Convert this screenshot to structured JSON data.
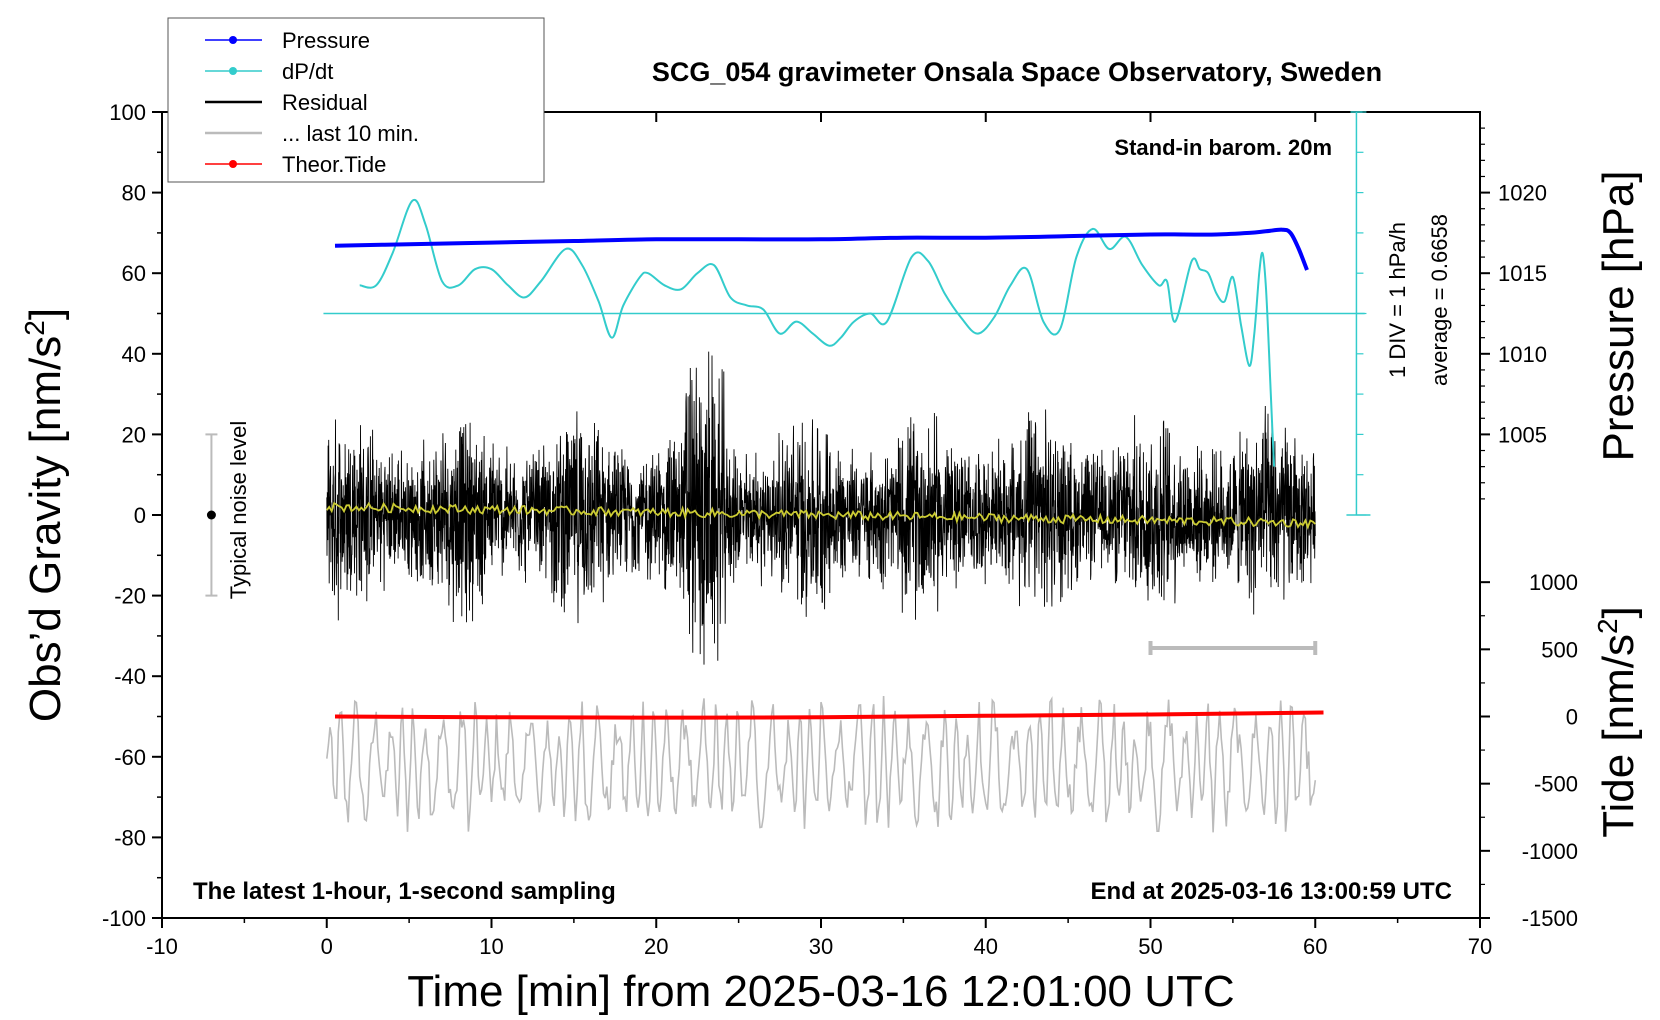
{
  "chart_data": {
    "type": "line",
    "title": "SCG_054 gravimeter Onsala Space Observatory, Sweden",
    "xlabel": "Time [min] from 2025-03-16 12:01:00 UTC",
    "ylabel_left": "Obs’d Gravity [nm/s",
    "ylabel_left_sup": "2",
    "ylabel_left_end": "]",
    "ylabel_right_top": "Pressure [hPa]",
    "ylabel_right_bottom": "Tide [nm/s",
    "ylabel_right_bottom_sup": "2",
    "ylabel_right_bottom_end": "]",
    "xlim": [
      -10,
      70
    ],
    "ylim": [
      -100,
      100
    ],
    "xticks": [
      -10,
      0,
      10,
      20,
      30,
      40,
      50,
      60,
      70
    ],
    "yticks": [
      -100,
      -80,
      -60,
      -40,
      -20,
      0,
      20,
      40,
      60,
      80,
      100
    ],
    "pressure_ticks": [
      1005,
      1010,
      1015,
      1020
    ],
    "pressure_axis_map": {
      "value_at_left_100": 1025,
      "value_at_left_0": 1000
    },
    "tide_ticks": [
      1000,
      500,
      0,
      -500,
      -1000,
      -1500
    ],
    "tide_axis_map": {
      "value_at_left_minus50": 0,
      "value_at_left_minus100": -1500
    },
    "annotations": {
      "stand_in": "Stand-in barom. 20m",
      "div": "1 DIV = 1 hPa/h",
      "average": "average = 0.6658",
      "noise": "Typical noise level",
      "latest": "The latest 1-hour, 1-second sampling",
      "end": "End at 2025-03-16 13:00:59 UTC"
    },
    "legend": {
      "placement": "top-left",
      "entries": [
        {
          "label": "Pressure",
          "color": "#0000ff",
          "marker": true
        },
        {
          "label": "dP/dt",
          "color": "#33cccc",
          "marker": true
        },
        {
          "label": "Residual",
          "color": "#000000",
          "marker": false
        },
        {
          "label": "... last 10 min.",
          "color": "#bbbbbb",
          "marker": false
        },
        {
          "label": "Theor.Tide",
          "color": "#ff0000",
          "marker": true
        }
      ]
    },
    "noise_bar": {
      "x": -7,
      "center": 0,
      "low": -20,
      "high": 20
    },
    "last10_bar": {
      "x_start": 50,
      "x_end": 60,
      "y": -33
    },
    "series": [
      {
        "name": "Pressure",
        "color": "#0000ff",
        "axis": "pressure",
        "x": [
          0.5,
          5,
          10,
          15,
          20,
          25,
          30,
          35,
          40,
          45,
          50,
          52,
          54,
          56,
          57,
          58,
          58.5,
          59,
          59.5
        ],
        "values": [
          1016.7,
          1016.8,
          1016.9,
          1017.0,
          1017.1,
          1017.1,
          1017.1,
          1017.2,
          1017.2,
          1017.3,
          1017.4,
          1017.4,
          1017.4,
          1017.5,
          1017.6,
          1017.7,
          1017.5,
          1016.5,
          1015.2
        ]
      },
      {
        "name": "dP/dt",
        "color": "#33cccc",
        "axis": "left",
        "baseline": 50,
        "x": [
          2,
          3,
          4,
          5.2,
          6,
          7,
          8,
          9,
          10,
          11,
          12,
          13,
          14.5,
          15.5,
          16.5,
          17.3,
          18,
          19,
          19.5,
          20.5,
          21.5,
          22.5,
          23.5,
          24.5,
          25.5,
          26.5,
          27.5,
          28.5,
          29.5,
          30.5,
          31.2,
          32,
          33,
          34,
          35.5,
          36.5,
          37.5,
          38.5,
          39.5,
          40.5,
          41.5,
          42.5,
          43.5,
          44.5,
          45.5,
          46.5,
          47.5,
          48.5,
          49.5,
          50.5,
          51,
          51.5,
          52.5,
          53,
          53.5,
          54,
          54.5,
          55,
          55.5,
          56,
          56.3,
          56.6,
          56.8,
          57,
          57.2,
          57.3,
          57.5
        ],
        "values": [
          57,
          57,
          65,
          78,
          72,
          58,
          57,
          61,
          61,
          57,
          54,
          58,
          66,
          62,
          53,
          44,
          52,
          59,
          60,
          57,
          56,
          60,
          62,
          54,
          52,
          51,
          45,
          48,
          45,
          42,
          44,
          48,
          50,
          48,
          64,
          63,
          55,
          49,
          45,
          49,
          57,
          61,
          48,
          46,
          64,
          71,
          66,
          69,
          62,
          57,
          58,
          48,
          63,
          61,
          60,
          55,
          53,
          59,
          47,
          37,
          45,
          60,
          65,
          57,
          40,
          30,
          12
        ]
      },
      {
        "name": "Theor.Tide",
        "color": "#ff0000",
        "axis": "tide",
        "x": [
          0.5,
          10,
          20,
          30,
          40,
          50,
          60.5
        ],
        "values": [
          0,
          -5,
          -8,
          -6,
          5,
          15,
          30
        ]
      },
      {
        "name": "Residual",
        "color": "#000000",
        "axis": "left",
        "x_range": [
          0,
          60
        ],
        "amplitude": 15
      },
      {
        "name": "Residual trend",
        "color": "#cccc33",
        "axis": "left",
        "x_range": [
          0,
          60
        ],
        "values_start_end": [
          2,
          -2
        ]
      },
      {
        "name": "... last 10 min.",
        "color": "#bbbbbb",
        "axis": "left",
        "x_range": [
          0,
          60
        ],
        "center": -62,
        "amplitude": 13
      }
    ]
  }
}
